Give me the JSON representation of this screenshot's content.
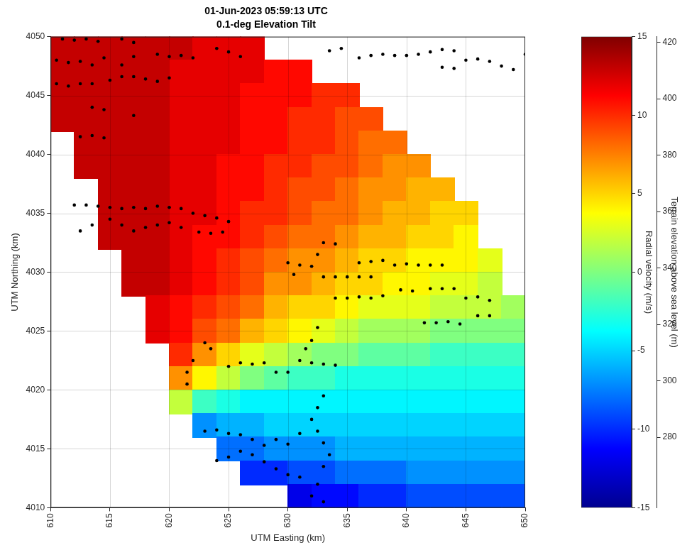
{
  "chart_data": {
    "type": "heatmap",
    "title": "01-Jun-2023 05:59:13 UTC",
    "subtitle": "0.1-deg Elevation Tilt",
    "xlabel": "UTM Easting (km)",
    "ylabel": "UTM Northing (km)",
    "xlim": [
      610,
      650
    ],
    "xticks": [
      610,
      615,
      620,
      625,
      630,
      635,
      640,
      645,
      650
    ],
    "ylim": [
      4010,
      4050
    ],
    "yticks": [
      4010,
      4015,
      4020,
      4025,
      4030,
      4035,
      4040,
      4045,
      4050
    ],
    "grid": true,
    "colorbar": {
      "label": "Radial velocity (m/s)",
      "range": [
        -15,
        15
      ],
      "ticks": [
        -15,
        -10,
        -5,
        0,
        5,
        10,
        15
      ]
    },
    "colorbar2": {
      "label": "Terrain elevation above sea level (m)",
      "range": [
        255,
        422
      ],
      "ticks": [
        280,
        300,
        320,
        340,
        360,
        380,
        400,
        420
      ]
    },
    "cells": {
      "x": [
        611,
        613,
        615,
        617,
        619,
        621,
        623,
        625,
        627,
        629,
        631,
        633,
        635,
        637,
        639,
        641,
        643,
        645,
        647,
        649
      ],
      "y": [
        4049,
        4047,
        4045,
        4043,
        4041,
        4039,
        4037,
        4035,
        4033,
        4031,
        4029,
        4027,
        4025,
        4023,
        4021,
        4019,
        4017,
        4015,
        4013,
        4011
      ],
      "values": [
        [
          13,
          13,
          13,
          13,
          13,
          13,
          12,
          12,
          12,
          null,
          null,
          null,
          null,
          null,
          null,
          null,
          null,
          null,
          null,
          null
        ],
        [
          13,
          13,
          13,
          13,
          13,
          12,
          12,
          12,
          12,
          11,
          11,
          null,
          null,
          null,
          null,
          null,
          null,
          null,
          null,
          null
        ],
        [
          13,
          13,
          13,
          13,
          13,
          12,
          12,
          12,
          11,
          11,
          11,
          10,
          10,
          null,
          null,
          null,
          null,
          null,
          null,
          null
        ],
        [
          13,
          13,
          13,
          13,
          13,
          12,
          12,
          12,
          11,
          11,
          10,
          10,
          9,
          9,
          null,
          null,
          null,
          null,
          null,
          null
        ],
        [
          null,
          13,
          13,
          13,
          13,
          12,
          12,
          12,
          11,
          11,
          10,
          10,
          9,
          8,
          8,
          null,
          null,
          null,
          null,
          null
        ],
        [
          null,
          13,
          13,
          13,
          13,
          12,
          12,
          11,
          11,
          10,
          10,
          9,
          9,
          8,
          7,
          7,
          null,
          null,
          null,
          null
        ],
        [
          null,
          null,
          13,
          13,
          13,
          12,
          12,
          11,
          11,
          10,
          9,
          9,
          8,
          7,
          7,
          6,
          6,
          null,
          null,
          null
        ],
        [
          null,
          null,
          13,
          13,
          13,
          12,
          12,
          11,
          10,
          10,
          9,
          8,
          8,
          7,
          6,
          6,
          5,
          5,
          null,
          null
        ],
        [
          null,
          null,
          13,
          13,
          13,
          12,
          11,
          11,
          10,
          9,
          8,
          8,
          7,
          6,
          6,
          5,
          5,
          4,
          null,
          null
        ],
        [
          null,
          null,
          null,
          13,
          13,
          12,
          11,
          10,
          9,
          8,
          7,
          7,
          6,
          5,
          5,
          4,
          4,
          4,
          3,
          null
        ],
        [
          null,
          null,
          null,
          13,
          13,
          12,
          11,
          10,
          9,
          7,
          7,
          6,
          5,
          5,
          4,
          4,
          3,
          3,
          2,
          null
        ],
        [
          null,
          null,
          null,
          null,
          12,
          11,
          10,
          9,
          8,
          6,
          5,
          5,
          4,
          3,
          3,
          3,
          2,
          2,
          2,
          1
        ],
        [
          null,
          null,
          null,
          null,
          12,
          11,
          9,
          8,
          6,
          5,
          4,
          3,
          2,
          1,
          1,
          1,
          0,
          0,
          0,
          0
        ],
        [
          null,
          null,
          null,
          null,
          null,
          10,
          7,
          5,
          3,
          2,
          1,
          0,
          0,
          -1,
          -1,
          -1,
          -2,
          -2,
          -2,
          -2
        ],
        [
          null,
          null,
          null,
          null,
          null,
          7,
          4,
          2,
          0,
          -1,
          -2,
          -2,
          -3,
          -3,
          -3,
          -3,
          -3,
          -3,
          -3,
          -3
        ],
        [
          null,
          null,
          null,
          null,
          null,
          2,
          -2,
          -3,
          -4,
          -4,
          -4,
          -4,
          -4,
          -4,
          -4,
          -4,
          -4,
          -4,
          -4,
          -4
        ],
        [
          null,
          null,
          null,
          null,
          null,
          null,
          -7,
          -6,
          -6,
          -5,
          -5,
          -5,
          -5,
          -5,
          -5,
          -5,
          -5,
          -5,
          -5,
          -5
        ],
        [
          null,
          null,
          null,
          null,
          null,
          null,
          null,
          -8,
          -8,
          -7,
          -7,
          -7,
          -6,
          -6,
          -6,
          -6,
          -6,
          -6,
          -6,
          -6
        ],
        [
          null,
          null,
          null,
          null,
          null,
          null,
          null,
          null,
          -10,
          -10,
          -9,
          -9,
          -8,
          -8,
          -8,
          -7,
          -7,
          -7,
          -7,
          -7
        ],
        [
          null,
          null,
          null,
          null,
          null,
          null,
          null,
          null,
          null,
          null,
          -12,
          -11,
          -11,
          -10,
          -10,
          -9,
          -9,
          -9,
          -9,
          -9
        ]
      ]
    },
    "series": [
      {
        "type": "scatter",
        "color": "#000000",
        "marker": "circle",
        "points": [
          [
            611,
            4049.8
          ],
          [
            612,
            4049.7
          ],
          [
            613,
            4049.8
          ],
          [
            614,
            4049.6
          ],
          [
            616,
            4049.8
          ],
          [
            617,
            4049.5
          ],
          [
            610.5,
            4048
          ],
          [
            611.5,
            4047.8
          ],
          [
            612.5,
            4047.9
          ],
          [
            613.5,
            4047.6
          ],
          [
            614.5,
            4048.2
          ],
          [
            616,
            4047.6
          ],
          [
            617,
            4048.3
          ],
          [
            619,
            4048.5
          ],
          [
            620,
            4048.3
          ],
          [
            621,
            4048.4
          ],
          [
            622,
            4048.2
          ],
          [
            624,
            4049
          ],
          [
            625,
            4048.7
          ],
          [
            626,
            4048.3
          ],
          [
            610.5,
            4046
          ],
          [
            611.5,
            4045.8
          ],
          [
            612.5,
            4046
          ],
          [
            613.5,
            4046
          ],
          [
            615,
            4046.3
          ],
          [
            616,
            4046.6
          ],
          [
            617,
            4046.6
          ],
          [
            618,
            4046.4
          ],
          [
            619,
            4046.2
          ],
          [
            620,
            4046.5
          ],
          [
            613.5,
            4044
          ],
          [
            614.5,
            4043.8
          ],
          [
            617,
            4043.3
          ],
          [
            612.5,
            4041.5
          ],
          [
            613.5,
            4041.6
          ],
          [
            614.5,
            4041.4
          ],
          [
            612,
            4035.7
          ],
          [
            613,
            4035.7
          ],
          [
            614,
            4035.6
          ],
          [
            615,
            4035.5
          ],
          [
            616,
            4035.4
          ],
          [
            617,
            4035.5
          ],
          [
            618,
            4035.4
          ],
          [
            619,
            4035.6
          ],
          [
            620,
            4035.5
          ],
          [
            621,
            4035.4
          ],
          [
            622,
            4035
          ],
          [
            623,
            4034.8
          ],
          [
            624,
            4034.6
          ],
          [
            625,
            4034.3
          ],
          [
            612.5,
            4033.5
          ],
          [
            613.5,
            4034
          ],
          [
            615,
            4034.5
          ],
          [
            616,
            4034
          ],
          [
            617,
            4033.5
          ],
          [
            618,
            4033.8
          ],
          [
            619,
            4034
          ],
          [
            620,
            4034.2
          ],
          [
            621,
            4033.8
          ],
          [
            622.5,
            4033.4
          ],
          [
            623.5,
            4033.3
          ],
          [
            624.5,
            4033.4
          ],
          [
            633,
            4032.5
          ],
          [
            634,
            4032.4
          ],
          [
            632.5,
            4031.5
          ],
          [
            630,
            4030.8
          ],
          [
            631,
            4030.6
          ],
          [
            632,
            4030.5
          ],
          [
            636,
            4030.8
          ],
          [
            637,
            4030.9
          ],
          [
            638,
            4031
          ],
          [
            639,
            4030.6
          ],
          [
            640,
            4030.7
          ],
          [
            641,
            4030.6
          ],
          [
            642,
            4030.6
          ],
          [
            643,
            4030.6
          ],
          [
            630.5,
            4029.8
          ],
          [
            633,
            4029.6
          ],
          [
            634,
            4029.6
          ],
          [
            635,
            4029.6
          ],
          [
            636,
            4029.6
          ],
          [
            637,
            4029.6
          ],
          [
            634,
            4027.8
          ],
          [
            635,
            4027.8
          ],
          [
            636,
            4027.9
          ],
          [
            637,
            4027.8
          ],
          [
            638,
            4028
          ],
          [
            639.5,
            4028.5
          ],
          [
            640.5,
            4028.4
          ],
          [
            642,
            4028.6
          ],
          [
            643,
            4028.6
          ],
          [
            644,
            4028.6
          ],
          [
            645,
            4027.8
          ],
          [
            646,
            4027.9
          ],
          [
            647,
            4027.6
          ],
          [
            641.5,
            4025.7
          ],
          [
            642.5,
            4025.7
          ],
          [
            643.5,
            4025.8
          ],
          [
            644.5,
            4025.6
          ],
          [
            646,
            4026.3
          ],
          [
            647,
            4026.3
          ],
          [
            623,
            4024
          ],
          [
            623.5,
            4023.5
          ],
          [
            622,
            4022.5
          ],
          [
            621.5,
            4021.5
          ],
          [
            621.5,
            4020.5
          ],
          [
            625,
            4022
          ],
          [
            626,
            4022.3
          ],
          [
            627,
            4022.2
          ],
          [
            628,
            4022.3
          ],
          [
            629,
            4021.5
          ],
          [
            630,
            4021.5
          ],
          [
            631,
            4022.5
          ],
          [
            632,
            4022.3
          ],
          [
            633,
            4022.2
          ],
          [
            634,
            4022.1
          ],
          [
            632.5,
            4025.3
          ],
          [
            632,
            4024.2
          ],
          [
            631.5,
            4023.5
          ],
          [
            633,
            4019.5
          ],
          [
            632.5,
            4018.5
          ],
          [
            632,
            4017.5
          ],
          [
            632.5,
            4016.5
          ],
          [
            633,
            4015.5
          ],
          [
            633.5,
            4014.5
          ],
          [
            633,
            4013.5
          ],
          [
            632.5,
            4012
          ],
          [
            632,
            4011
          ],
          [
            633,
            4010.5
          ],
          [
            623,
            4016.5
          ],
          [
            624,
            4016.6
          ],
          [
            625,
            4016.3
          ],
          [
            626,
            4016.2
          ],
          [
            627,
            4015.8
          ],
          [
            628,
            4015.3
          ],
          [
            629,
            4015.8
          ],
          [
            630,
            4015.4
          ],
          [
            631,
            4016.3
          ],
          [
            624,
            4014
          ],
          [
            625,
            4014.3
          ],
          [
            626,
            4014.8
          ],
          [
            627,
            4014.5
          ],
          [
            628,
            4013.9
          ],
          [
            629,
            4013.3
          ],
          [
            630,
            4012.8
          ],
          [
            631,
            4012.6
          ],
          [
            633.5,
            4048.8
          ],
          [
            634.5,
            4049
          ],
          [
            636,
            4048.2
          ],
          [
            637,
            4048.4
          ],
          [
            638,
            4048.5
          ],
          [
            639,
            4048.4
          ],
          [
            640,
            4048.4
          ],
          [
            641,
            4048.5
          ],
          [
            642,
            4048.7
          ],
          [
            643,
            4048.9
          ],
          [
            644,
            4048.8
          ],
          [
            643,
            4047.4
          ],
          [
            644,
            4047.3
          ],
          [
            645,
            4048
          ],
          [
            646,
            4048.1
          ],
          [
            647,
            4047.9
          ],
          [
            648,
            4047.5
          ],
          [
            649,
            4047.2
          ],
          [
            650,
            4048.5
          ]
        ]
      }
    ]
  }
}
